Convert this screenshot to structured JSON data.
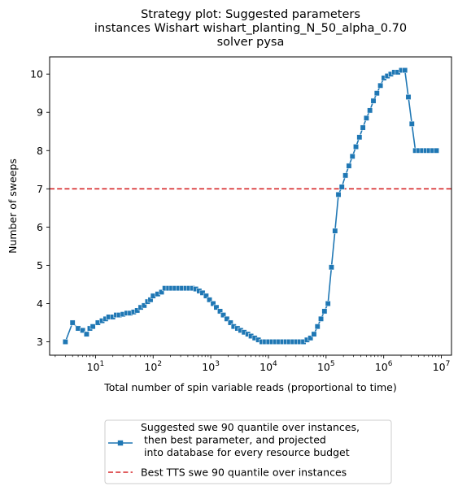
{
  "chart_data": {
    "type": "line",
    "title": [
      "Strategy plot: Suggested parameters",
      "instances Wishart wishart_planting_N_50_alpha_0.70",
      "solver pysa"
    ],
    "xlabel": "Total number of spin variable reads (proportional to time)",
    "ylabel": "Number of sweeps",
    "x_scale": "log",
    "xlim": [
      1.6,
      15000000
    ],
    "ylim": [
      2.65,
      10.45
    ],
    "x_ticks": [
      {
        "value": 10,
        "base": "10",
        "exp": "1"
      },
      {
        "value": 100,
        "base": "10",
        "exp": "2"
      },
      {
        "value": 1000,
        "base": "10",
        "exp": "3"
      },
      {
        "value": 10000,
        "base": "10",
        "exp": "4"
      },
      {
        "value": 100000,
        "base": "10",
        "exp": "5"
      },
      {
        "value": 1000000,
        "base": "10",
        "exp": "6"
      },
      {
        "value": 10000000,
        "base": "10",
        "exp": "7"
      }
    ],
    "y_ticks": [
      3,
      4,
      5,
      6,
      7,
      8,
      9,
      10
    ],
    "grid": false,
    "legend_position": "below plot, centered",
    "series": [
      {
        "name": "Suggested swe 90 quantile over instances,\n  then best parameter, and projected\n  into database for every resource budget",
        "color": "#1f77b4",
        "marker": "square",
        "points": [
          [
            3,
            3.0
          ],
          [
            4,
            3.5
          ],
          [
            5,
            3.35
          ],
          [
            6,
            3.3
          ],
          [
            7,
            3.2
          ],
          [
            8,
            3.35
          ],
          [
            9,
            3.4
          ],
          [
            11,
            3.5
          ],
          [
            13,
            3.55
          ],
          [
            15,
            3.6
          ],
          [
            17,
            3.65
          ],
          [
            20,
            3.65
          ],
          [
            23,
            3.7
          ],
          [
            26,
            3.7
          ],
          [
            30,
            3.72
          ],
          [
            35,
            3.75
          ],
          [
            40,
            3.75
          ],
          [
            46,
            3.78
          ],
          [
            53,
            3.82
          ],
          [
            61,
            3.9
          ],
          [
            70,
            3.95
          ],
          [
            80,
            4.05
          ],
          [
            90,
            4.1
          ],
          [
            100,
            4.2
          ],
          [
            120,
            4.25
          ],
          [
            140,
            4.3
          ],
          [
            160,
            4.4
          ],
          [
            185,
            4.4
          ],
          [
            210,
            4.4
          ],
          [
            240,
            4.4
          ],
          [
            280,
            4.4
          ],
          [
            320,
            4.4
          ],
          [
            370,
            4.4
          ],
          [
            420,
            4.4
          ],
          [
            480,
            4.4
          ],
          [
            550,
            4.38
          ],
          [
            630,
            4.33
          ],
          [
            720,
            4.28
          ],
          [
            830,
            4.2
          ],
          [
            950,
            4.1
          ],
          [
            1100,
            4.0
          ],
          [
            1250,
            3.9
          ],
          [
            1450,
            3.8
          ],
          [
            1650,
            3.7
          ],
          [
            1900,
            3.6
          ],
          [
            2200,
            3.5
          ],
          [
            2500,
            3.4
          ],
          [
            2900,
            3.35
          ],
          [
            3300,
            3.3
          ],
          [
            3800,
            3.25
          ],
          [
            4400,
            3.2
          ],
          [
            5000,
            3.15
          ],
          [
            5800,
            3.1
          ],
          [
            6700,
            3.05
          ],
          [
            7700,
            3.0
          ],
          [
            8800,
            3.0
          ],
          [
            10100,
            3.0
          ],
          [
            11600,
            3.0
          ],
          [
            13300,
            3.0
          ],
          [
            15300,
            3.0
          ],
          [
            17600,
            3.0
          ],
          [
            20200,
            3.0
          ],
          [
            23200,
            3.0
          ],
          [
            26700,
            3.0
          ],
          [
            30700,
            3.0
          ],
          [
            35300,
            3.0
          ],
          [
            40600,
            3.0
          ],
          [
            46700,
            3.05
          ],
          [
            53700,
            3.1
          ],
          [
            61700,
            3.2
          ],
          [
            71000,
            3.4
          ],
          [
            81600,
            3.6
          ],
          [
            93800,
            3.8
          ],
          [
            108000,
            4.0
          ],
          [
            124000,
            4.95
          ],
          [
            143000,
            5.9
          ],
          [
            164000,
            6.85
          ],
          [
            188000,
            7.05
          ],
          [
            217000,
            7.35
          ],
          [
            249000,
            7.6
          ],
          [
            287000,
            7.85
          ],
          [
            330000,
            8.1
          ],
          [
            379000,
            8.35
          ],
          [
            436000,
            8.6
          ],
          [
            501000,
            8.85
          ],
          [
            576000,
            9.05
          ],
          [
            663000,
            9.3
          ],
          [
            762000,
            9.5
          ],
          [
            877000,
            9.7
          ],
          [
            1010000,
            9.9
          ],
          [
            1160000,
            9.95
          ],
          [
            1330000,
            10.0
          ],
          [
            1530000,
            10.05
          ],
          [
            1760000,
            10.05
          ],
          [
            2030000,
            10.1
          ],
          [
            2330000,
            10.1
          ],
          [
            2680000,
            9.4
          ],
          [
            3080000,
            8.7
          ],
          [
            3550000,
            8.0
          ],
          [
            4080000,
            8.0
          ],
          [
            4690000,
            8.0
          ],
          [
            5390000,
            8.0
          ],
          [
            6200000,
            8.0
          ],
          [
            7130000,
            8.0
          ],
          [
            8200000,
            8.0
          ]
        ]
      }
    ],
    "reference_lines": [
      {
        "name": "Best TTS swe 90 quantile over instances",
        "orientation": "horizontal",
        "y": 7,
        "color": "#d62728",
        "style": "dashed"
      }
    ]
  }
}
